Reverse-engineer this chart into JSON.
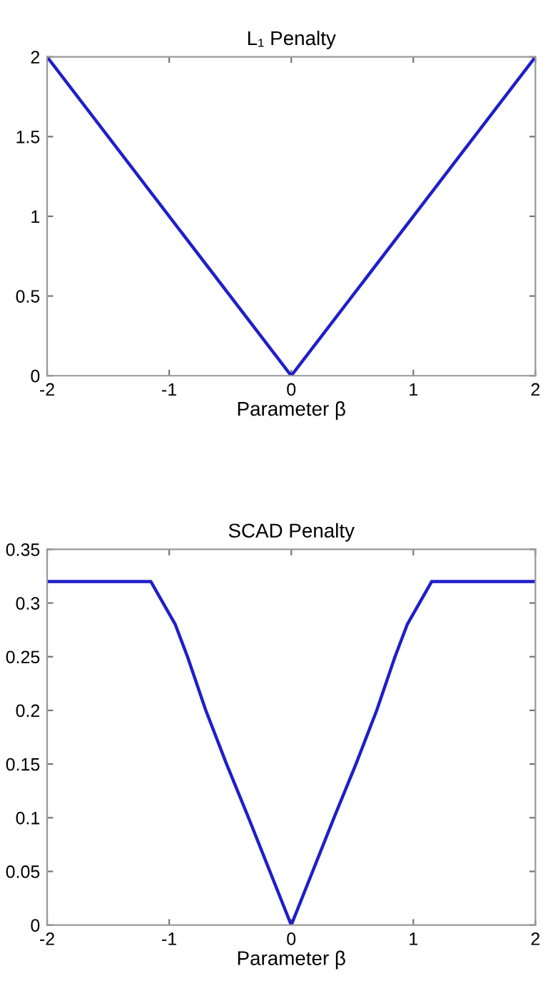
{
  "chart_data": [
    {
      "type": "line",
      "title": "L₁ Penalty",
      "xlabel": "Parameter β",
      "x": [
        -2,
        0,
        2
      ],
      "series": [
        {
          "color": "#1f1fc8",
          "values": [
            2,
            0,
            2
          ]
        }
      ],
      "xlim": [
        -2,
        2
      ],
      "xticks": [
        -2,
        -1,
        0,
        1,
        2
      ],
      "ylim": [
        0,
        2
      ],
      "yticks": [
        0,
        0.5,
        1,
        1.5,
        2
      ],
      "grid": false,
      "legend": false,
      "marker": "none",
      "line_style": "solid"
    },
    {
      "type": "line",
      "title": "SCAD Penalty",
      "xlabel": "Parameter β",
      "x": [
        -2,
        -1.15,
        -1.05,
        -0.95,
        -0.85,
        -0.7,
        -0.53,
        -0.35,
        0,
        0.35,
        0.53,
        0.7,
        0.85,
        0.95,
        1.05,
        1.15,
        2
      ],
      "series": [
        {
          "color": "#1f1fc8",
          "values": [
            0.32,
            0.32,
            0.3,
            0.28,
            0.25,
            0.2,
            0.15,
            0.1,
            0,
            0.1,
            0.15,
            0.2,
            0.25,
            0.28,
            0.3,
            0.32,
            0.32
          ]
        }
      ],
      "xlim": [
        -2,
        2
      ],
      "xticks": [
        -2,
        -1,
        0,
        1,
        2
      ],
      "ylim": [
        0,
        0.35
      ],
      "yticks": [
        0,
        0.05,
        0.1,
        0.15,
        0.2,
        0.25,
        0.3,
        0.35
      ],
      "grid": false,
      "legend": false,
      "marker": "none",
      "line_style": "solid"
    }
  ]
}
